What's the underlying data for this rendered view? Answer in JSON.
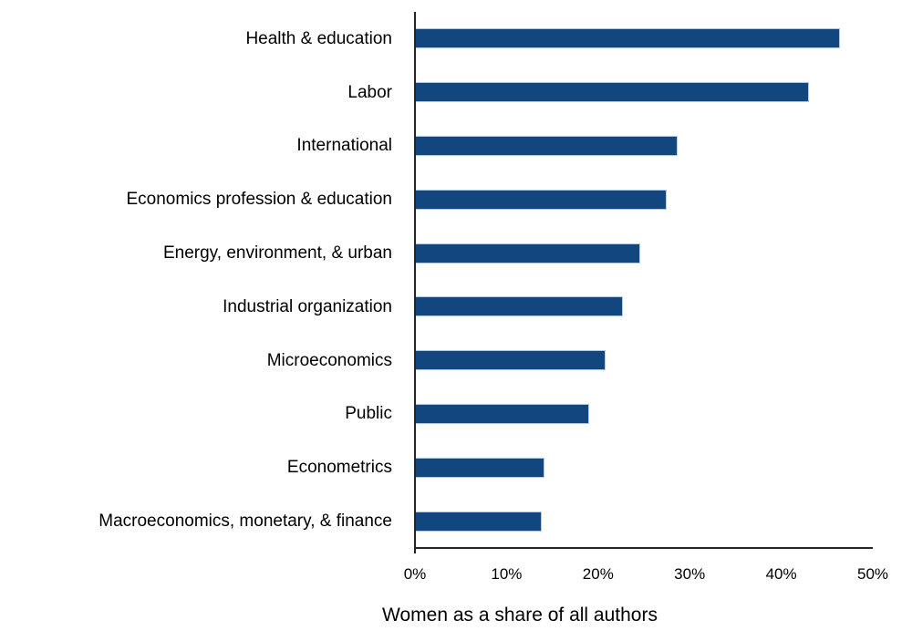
{
  "chart_data": {
    "type": "bar",
    "orientation": "horizontal",
    "title": "",
    "xlabel": "Women as a share of all authors",
    "ylabel": "",
    "xlim": [
      0,
      50
    ],
    "x_ticks": [
      "0%",
      "10%",
      "20%",
      "30%",
      "40%",
      "50%"
    ],
    "x_tick_values": [
      0,
      10,
      20,
      30,
      40,
      50
    ],
    "grid": false,
    "legend": false,
    "categories": [
      "Health & education",
      "Labor",
      "International",
      "Economics profession & education",
      "Energy, environment, & urban",
      "Industrial organization",
      "Microeconomics",
      "Public",
      "Econometrics",
      "Macroeconomics, monetary, & finance"
    ],
    "values": [
      46.4,
      43.0,
      28.7,
      27.5,
      24.6,
      22.7,
      20.8,
      19.0,
      14.1,
      13.8
    ]
  },
  "colors": {
    "bar_fill": "#11477E",
    "bar_border": "#AEC9E5",
    "axis_line": "#262626",
    "text": "#000000",
    "background": "#FFFFFF"
  }
}
